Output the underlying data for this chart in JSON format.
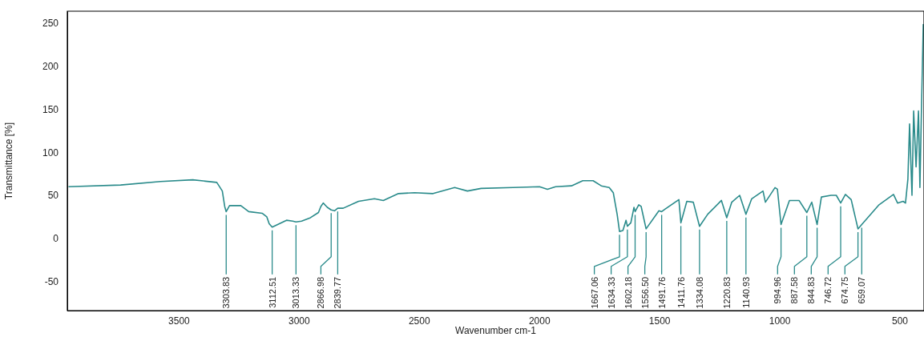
{
  "chart_data": {
    "type": "line",
    "xlabel": "Wavenumber cm-1",
    "ylabel": "Transmittance [%]",
    "xlim": [
      3965,
      400
    ],
    "xticks": [
      3500,
      3000,
      2500,
      2000,
      1500,
      1000,
      500
    ],
    "ylim": [
      -83,
      265
    ],
    "yticks": [
      -50,
      0,
      50,
      100,
      150,
      200,
      250
    ],
    "grid": false,
    "legend": false,
    "marker": "none",
    "line_style": "solid",
    "x": [
      3960,
      3743,
      3577,
      3443,
      3343,
      3320,
      3310,
      3303.83,
      3290,
      3243,
      3210,
      3153,
      3135,
      3125,
      3112.51,
      3053,
      3027,
      3013.33,
      2990,
      2953,
      2920,
      2910,
      2900,
      2883,
      2866.98,
      2853,
      2839.77,
      2817,
      2753,
      2687,
      2650,
      2587,
      2520,
      2443,
      2353,
      2300,
      2243,
      2110,
      2000,
      1967,
      1933,
      1867,
      1820,
      1777,
      1743,
      1710,
      1693,
      1677,
      1667.06,
      1653,
      1640,
      1634.33,
      1620,
      1607,
      1602.18,
      1587,
      1577,
      1556.5,
      1503,
      1491.76,
      1477,
      1420,
      1411.76,
      1387,
      1360,
      1334.08,
      1300,
      1243,
      1220.83,
      1200,
      1167,
      1140.93,
      1117,
      1070,
      1060,
      1020,
      1010,
      994.96,
      960,
      920,
      887.58,
      867,
      844.83,
      827,
      787,
      765,
      746.72,
      727,
      703,
      674.75,
      659.07,
      587,
      527,
      510,
      487,
      477,
      467,
      460,
      450,
      443,
      433,
      423,
      417,
      410,
      403
    ],
    "series": [
      {
        "color": "#2a8b8b",
        "values": [
          61,
          63,
          67,
          69,
          66,
          56,
          38,
          32,
          39,
          39,
          32,
          30,
          26,
          18,
          14,
          22,
          21,
          20,
          21,
          25,
          31,
          38,
          42,
          37,
          34,
          33,
          36,
          36,
          44,
          47,
          45,
          53,
          54,
          53,
          60,
          56,
          59,
          60,
          61,
          58,
          61,
          62,
          68,
          68,
          62,
          60,
          54,
          29,
          9,
          10,
          22,
          15,
          19,
          37,
          32,
          40,
          38,
          12,
          33,
          32,
          35,
          46,
          19,
          44,
          43,
          15,
          29,
          45,
          25,
          43,
          51,
          29,
          47,
          56,
          43,
          60,
          58,
          17,
          45,
          45,
          31,
          43,
          17,
          49,
          51,
          51,
          42,
          52,
          46,
          12,
          17,
          40,
          52,
          42,
          44,
          42,
          70,
          134,
          51,
          149,
          84,
          149,
          60,
          158,
          250
        ]
      }
    ],
    "annotations": [
      {
        "text": "3303.83",
        "x": 3303.83,
        "y": 32
      },
      {
        "text": "3112.51",
        "x": 3112.51,
        "y": 14
      },
      {
        "text": "3013.33",
        "x": 3013.33,
        "y": 20
      },
      {
        "text": "2866.98",
        "x": 2866.98,
        "y": 34
      },
      {
        "text": "2839.77",
        "x": 2839.77,
        "y": 36
      },
      {
        "text": "1667.06",
        "x": 1667.06,
        "y": 9
      },
      {
        "text": "1634.33",
        "x": 1634.33,
        "y": 15
      },
      {
        "text": "1602.18",
        "x": 1602.18,
        "y": 32
      },
      {
        "text": "1556.50",
        "x": 1556.5,
        "y": 12
      },
      {
        "text": "1491.76",
        "x": 1491.76,
        "y": 32
      },
      {
        "text": "1411.76",
        "x": 1411.76,
        "y": 19
      },
      {
        "text": "1334.08",
        "x": 1334.08,
        "y": 15
      },
      {
        "text": "1220.83",
        "x": 1220.83,
        "y": 25
      },
      {
        "text": "1140.93",
        "x": 1140.93,
        "y": 29
      },
      {
        "text": "994.96",
        "x": 994.96,
        "y": 17
      },
      {
        "text": "887.58",
        "x": 887.58,
        "y": 31
      },
      {
        "text": "844.83",
        "x": 844.83,
        "y": 17
      },
      {
        "text": "746.72",
        "x": 746.72,
        "y": 42
      },
      {
        "text": "674.75",
        "x": 674.75,
        "y": 12
      },
      {
        "text": "659.07",
        "x": 659.07,
        "y": 17
      }
    ]
  }
}
